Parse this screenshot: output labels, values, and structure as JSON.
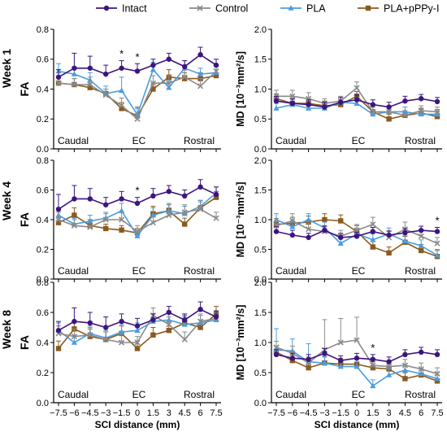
{
  "legend": {
    "position": "top",
    "entries": [
      {
        "name": "Intact",
        "color": "#3d1480",
        "marker": "circle"
      },
      {
        "name": "Control",
        "color": "#8a8a8a",
        "marker": "x"
      },
      {
        "name": "PLA",
        "color": "#4a9de0",
        "marker": "triangle"
      },
      {
        "name": "PLA+pPPy-I",
        "color": "#8a5a1e",
        "marker": "square"
      }
    ]
  },
  "row_labels": [
    "Week 1",
    "Week 4",
    "Week 8"
  ],
  "region_labels": [
    "Caudal",
    "EC",
    "Rostral"
  ],
  "shared_x": {
    "values": [
      -7.5,
      -6,
      -4.5,
      -3,
      -1.5,
      0,
      1.5,
      3,
      4.5,
      6,
      7.5
    ],
    "tick_labels": [
      "−7.5",
      "−6",
      "−4.5",
      "−3",
      "−1.5",
      "0",
      "1.5",
      "3",
      "4.5",
      "6",
      "7.5"
    ],
    "xlabel": "SCI distance (mm)"
  },
  "chart_data": [
    {
      "type": "line",
      "row": "Week 1",
      "ylabel": "FA",
      "ylim": [
        0,
        0.8
      ],
      "yticks": [
        "0.0",
        "0.2",
        "0.4",
        "0.6",
        "0.8"
      ],
      "grid": false,
      "annotations": [
        {
          "x": -1.5,
          "text": "*"
        },
        {
          "x": 0,
          "text": "*"
        }
      ],
      "series": [
        {
          "name": "Intact",
          "values": [
            0.48,
            0.54,
            0.54,
            0.5,
            0.54,
            0.52,
            0.56,
            0.6,
            0.55,
            0.63,
            0.56
          ],
          "errors": [
            0.05,
            0.1,
            0.08,
            0.06,
            0.05,
            0.05,
            0.04,
            0.04,
            0.04,
            0.05,
            0.04
          ]
        },
        {
          "name": "Control",
          "values": [
            0.44,
            0.43,
            0.43,
            0.36,
            0.29,
            0.2,
            0.44,
            0.44,
            0.48,
            0.42,
            0.52
          ],
          "errors": [
            0.04,
            0.04,
            0.05,
            0.04,
            0.05,
            0.03,
            0.05,
            0.05,
            0.05,
            0.05,
            0.04
          ]
        },
        {
          "name": "PLA",
          "values": [
            0.52,
            0.5,
            0.46,
            0.37,
            0.39,
            0.23,
            0.53,
            0.41,
            0.54,
            0.5,
            0.51
          ],
          "errors": [
            0.05,
            0.05,
            0.05,
            0.05,
            0.09,
            0.04,
            0.05,
            0.05,
            0.05,
            0.04,
            0.04
          ]
        },
        {
          "name": "PLA+pPPy-I",
          "values": [
            0.44,
            0.43,
            0.41,
            0.37,
            0.27,
            0.22,
            0.4,
            0.48,
            0.47,
            0.47,
            0.49
          ],
          "errors": [
            0.04,
            0.04,
            0.04,
            0.03,
            0.04,
            0.06,
            0.04,
            0.05,
            0.04,
            0.04,
            0.04
          ]
        }
      ]
    },
    {
      "type": "line",
      "row": "Week 1",
      "ylabel": "MD [10⁻³mm²/s]",
      "ylim": [
        0,
        2.0
      ],
      "yticks": [
        "0.0",
        "0.5",
        "1.0",
        "1.5",
        "2.0"
      ],
      "grid": false,
      "annotations": [],
      "series": [
        {
          "name": "Intact",
          "values": [
            0.8,
            0.76,
            0.74,
            0.7,
            0.78,
            0.82,
            0.74,
            0.7,
            0.8,
            0.84,
            0.79
          ],
          "errors": [
            0.08,
            0.08,
            0.08,
            0.08,
            0.08,
            0.08,
            0.08,
            0.08,
            0.08,
            0.07,
            0.07
          ]
        },
        {
          "name": "Control",
          "values": [
            0.88,
            0.88,
            0.84,
            0.76,
            0.8,
            1.02,
            0.62,
            0.62,
            0.56,
            0.64,
            0.62
          ],
          "errors": [
            0.1,
            0.1,
            0.1,
            0.08,
            0.08,
            0.1,
            0.08,
            0.08,
            0.08,
            0.08,
            0.08
          ]
        },
        {
          "name": "PLA",
          "values": [
            0.68,
            0.74,
            0.68,
            0.68,
            0.78,
            0.76,
            0.58,
            0.62,
            0.62,
            0.58,
            0.58
          ],
          "errors": [
            0.08,
            0.08,
            0.08,
            0.08,
            0.08,
            0.08,
            0.08,
            0.08,
            0.08,
            0.08,
            0.08
          ]
        },
        {
          "name": "PLA+pPPy-I",
          "values": [
            0.84,
            0.76,
            0.76,
            0.72,
            0.74,
            0.88,
            0.62,
            0.5,
            0.56,
            0.6,
            0.54
          ],
          "errors": [
            0.08,
            0.08,
            0.08,
            0.08,
            0.08,
            0.08,
            0.08,
            0.08,
            0.08,
            0.08,
            0.08
          ]
        }
      ]
    },
    {
      "type": "line",
      "row": "Week 4",
      "ylabel": "FA",
      "ylim": [
        0,
        0.8
      ],
      "yticks": [
        "0.0",
        "0.2",
        "0.4",
        "0.6",
        "0.8"
      ],
      "grid": false,
      "annotations": [
        {
          "x": 0,
          "text": "*"
        }
      ],
      "series": [
        {
          "name": "Intact",
          "values": [
            0.47,
            0.54,
            0.54,
            0.5,
            0.54,
            0.51,
            0.56,
            0.59,
            0.56,
            0.62,
            0.57
          ],
          "errors": [
            0.1,
            0.09,
            0.07,
            0.05,
            0.05,
            0.04,
            0.05,
            0.04,
            0.04,
            0.05,
            0.05
          ]
        },
        {
          "name": "Control",
          "values": [
            0.4,
            0.36,
            0.35,
            0.4,
            0.4,
            0.32,
            0.38,
            0.43,
            0.45,
            0.47,
            0.41
          ],
          "errors": [
            0.05,
            0.04,
            0.04,
            0.04,
            0.05,
            0.04,
            0.04,
            0.05,
            0.05,
            0.05,
            0.04
          ]
        },
        {
          "name": "PLA",
          "values": [
            0.43,
            0.37,
            0.39,
            0.41,
            0.46,
            0.29,
            0.43,
            0.46,
            0.44,
            0.49,
            0.58
          ],
          "errors": [
            0.05,
            0.04,
            0.04,
            0.04,
            0.05,
            0.03,
            0.05,
            0.05,
            0.05,
            0.04,
            0.04
          ]
        },
        {
          "name": "PLA+pPPy-I",
          "values": [
            0.38,
            0.43,
            0.36,
            0.34,
            0.33,
            0.31,
            0.44,
            0.46,
            0.37,
            0.48,
            0.55
          ],
          "errors": [
            0.03,
            0.05,
            0.04,
            0.03,
            0.03,
            0.03,
            0.05,
            0.04,
            0.04,
            0.05,
            0.04
          ]
        }
      ]
    },
    {
      "type": "line",
      "row": "Week 4",
      "ylabel": "MD [10⁻³mm²/s]",
      "ylim": [
        0,
        2.0
      ],
      "yticks": [
        "0.0",
        "0.5",
        "1.0",
        "1.5",
        "2.0"
      ],
      "grid": false,
      "annotations": [
        {
          "x": 7.5,
          "text": "*"
        }
      ],
      "series": [
        {
          "name": "Intact",
          "values": [
            0.8,
            0.74,
            0.7,
            0.82,
            0.7,
            0.72,
            0.8,
            0.74,
            0.78,
            0.82,
            0.8
          ],
          "errors": [
            0.08,
            0.08,
            0.07,
            0.07,
            0.07,
            0.07,
            0.07,
            0.07,
            0.07,
            0.07,
            0.07
          ]
        },
        {
          "name": "Control",
          "values": [
            0.9,
            0.98,
            0.84,
            0.8,
            0.72,
            0.82,
            0.92,
            0.7,
            0.84,
            0.72,
            0.6
          ],
          "errors": [
            0.12,
            0.12,
            0.1,
            0.1,
            0.1,
            0.1,
            0.12,
            0.1,
            0.12,
            0.1,
            0.1
          ]
        },
        {
          "name": "PLA",
          "values": [
            1.0,
            0.88,
            1.0,
            0.86,
            0.6,
            0.76,
            0.66,
            0.76,
            0.64,
            0.56,
            0.4
          ],
          "errors": [
            0.1,
            0.1,
            0.1,
            0.1,
            0.1,
            0.1,
            0.1,
            0.1,
            0.1,
            0.1,
            0.1
          ]
        },
        {
          "name": "PLA+pPPy-I",
          "values": [
            0.92,
            0.94,
            0.96,
            1.0,
            0.98,
            0.8,
            0.54,
            0.44,
            0.62,
            0.48,
            0.38
          ],
          "errors": [
            0.1,
            0.1,
            0.1,
            0.1,
            0.1,
            0.1,
            0.1,
            0.1,
            0.1,
            0.1,
            0.1
          ]
        }
      ]
    },
    {
      "type": "line",
      "row": "Week 8",
      "ylabel": "FA",
      "ylim": [
        0,
        0.8
      ],
      "yticks": [
        "0.0",
        "0.2",
        "0.4",
        "0.6",
        "0.8"
      ],
      "grid": false,
      "annotations": [],
      "series": [
        {
          "name": "Intact",
          "values": [
            0.48,
            0.54,
            0.53,
            0.5,
            0.54,
            0.51,
            0.55,
            0.6,
            0.55,
            0.62,
            0.57
          ],
          "errors": [
            0.06,
            0.09,
            0.07,
            0.07,
            0.05,
            0.05,
            0.04,
            0.04,
            0.04,
            0.05,
            0.04
          ]
        },
        {
          "name": "Control",
          "values": [
            0.46,
            0.44,
            0.45,
            0.42,
            0.4,
            0.4,
            0.58,
            0.52,
            0.42,
            0.54,
            0.56
          ],
          "errors": [
            0.05,
            0.05,
            0.05,
            0.05,
            0.05,
            0.04,
            0.05,
            0.05,
            0.05,
            0.05,
            0.05
          ]
        },
        {
          "name": "PLA",
          "values": [
            0.48,
            0.4,
            0.46,
            0.43,
            0.47,
            0.48,
            0.54,
            0.55,
            0.52,
            0.53,
            0.55
          ],
          "errors": [
            0.05,
            0.05,
            0.05,
            0.05,
            0.05,
            0.05,
            0.05,
            0.05,
            0.05,
            0.05,
            0.05
          ]
        },
        {
          "name": "PLA+pPPy-I",
          "values": [
            0.36,
            0.49,
            0.44,
            0.42,
            0.46,
            0.36,
            0.45,
            0.48,
            0.53,
            0.5,
            0.59
          ],
          "errors": [
            0.05,
            0.05,
            0.05,
            0.05,
            0.05,
            0.05,
            0.05,
            0.05,
            0.05,
            0.05,
            0.05
          ]
        }
      ]
    },
    {
      "type": "line",
      "row": "Week 8",
      "ylabel": "MD [10⁻³mm²/s]",
      "ylim": [
        0,
        2.0
      ],
      "yticks": [
        "0.0",
        "0.5",
        "1.0",
        "1.5",
        "2.0"
      ],
      "grid": false,
      "annotations": [
        {
          "x": 1.5,
          "text": "*"
        }
      ],
      "series": [
        {
          "name": "Intact",
          "values": [
            0.8,
            0.74,
            0.72,
            0.82,
            0.7,
            0.74,
            0.72,
            0.68,
            0.8,
            0.84,
            0.8
          ],
          "errors": [
            0.08,
            0.08,
            0.08,
            0.08,
            0.08,
            0.08,
            0.08,
            0.08,
            0.08,
            0.08,
            0.08
          ]
        },
        {
          "name": "Control",
          "values": [
            0.92,
            0.82,
            0.66,
            0.88,
            1.0,
            1.04,
            0.62,
            0.6,
            0.62,
            0.56,
            0.48
          ],
          "errors": [
            0.1,
            0.12,
            0.1,
            0.5,
            0.4,
            0.38,
            0.12,
            0.1,
            0.1,
            0.1,
            0.1
          ]
        },
        {
          "name": "PLA",
          "values": [
            0.88,
            0.86,
            0.68,
            0.66,
            0.6,
            0.6,
            0.28,
            0.46,
            0.54,
            0.48,
            0.4
          ],
          "errors": [
            0.35,
            0.2,
            0.3,
            0.12,
            0.12,
            0.12,
            0.1,
            0.1,
            0.1,
            0.1,
            0.1
          ]
        },
        {
          "name": "PLA+pPPy-I",
          "values": [
            0.84,
            0.7,
            0.58,
            0.66,
            0.64,
            0.64,
            0.58,
            0.56,
            0.4,
            0.46,
            0.36
          ],
          "errors": [
            0.1,
            0.1,
            0.1,
            0.1,
            0.1,
            0.1,
            0.1,
            0.1,
            0.1,
            0.1,
            0.1
          ]
        }
      ]
    }
  ]
}
